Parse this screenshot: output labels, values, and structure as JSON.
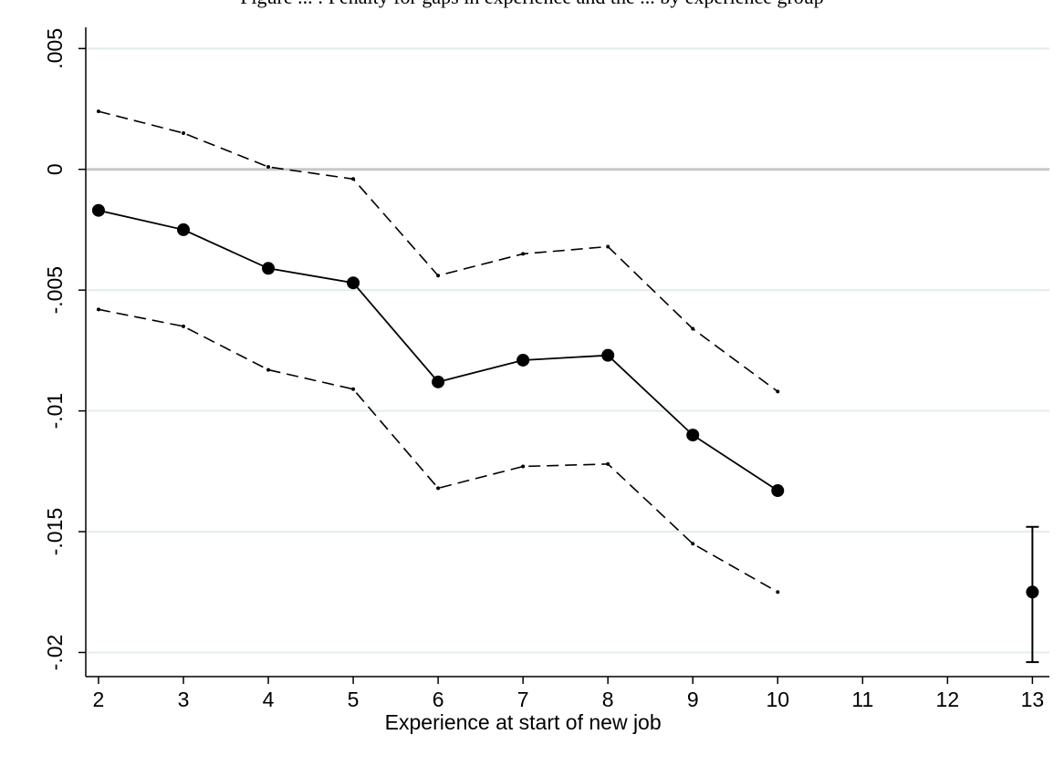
{
  "caption": "Figure ... : Penalty for gaps in experience and the ... by experience group",
  "chart_data": {
    "type": "line",
    "xlabel": "Experience at start of new job",
    "ylabel": "",
    "x_ticks": [
      2,
      3,
      4,
      5,
      6,
      7,
      8,
      9,
      10,
      11,
      12,
      13
    ],
    "y_ticks": [
      {
        "value": 0.005,
        "label": ".005"
      },
      {
        "value": 0,
        "label": "0"
      },
      {
        "value": -0.005,
        "label": "-.005"
      },
      {
        "value": -0.01,
        "label": "-.01"
      },
      {
        "value": -0.015,
        "label": "-.015"
      },
      {
        "value": -0.02,
        "label": "-.02"
      }
    ],
    "xlim": [
      1.85,
      13.2
    ],
    "ylim": [
      -0.021,
      0.0055
    ],
    "grid": true,
    "reference_line": 0,
    "series": [
      {
        "role": "estimate",
        "x": [
          2,
          3,
          4,
          5,
          6,
          7,
          8,
          9,
          10
        ],
        "values": [
          -0.0017,
          -0.0025,
          -0.0041,
          -0.0047,
          -0.0088,
          -0.0079,
          -0.0077,
          -0.011,
          -0.0133
        ]
      },
      {
        "role": "upper_ci",
        "x": [
          2,
          3,
          4,
          5,
          6,
          7,
          8,
          9,
          10
        ],
        "values": [
          0.0024,
          0.0015,
          0.0001,
          -0.0004,
          -0.0044,
          -0.0035,
          -0.0032,
          -0.0066,
          -0.0092
        ]
      },
      {
        "role": "lower_ci",
        "x": [
          2,
          3,
          4,
          5,
          6,
          7,
          8,
          9,
          10
        ],
        "values": [
          -0.0058,
          -0.0065,
          -0.0083,
          -0.0091,
          -0.0132,
          -0.0123,
          -0.0122,
          -0.0155,
          -0.0175
        ]
      }
    ],
    "error_bar": {
      "x": 13,
      "value": -0.0175,
      "low": -0.0204,
      "high": -0.0148
    }
  }
}
